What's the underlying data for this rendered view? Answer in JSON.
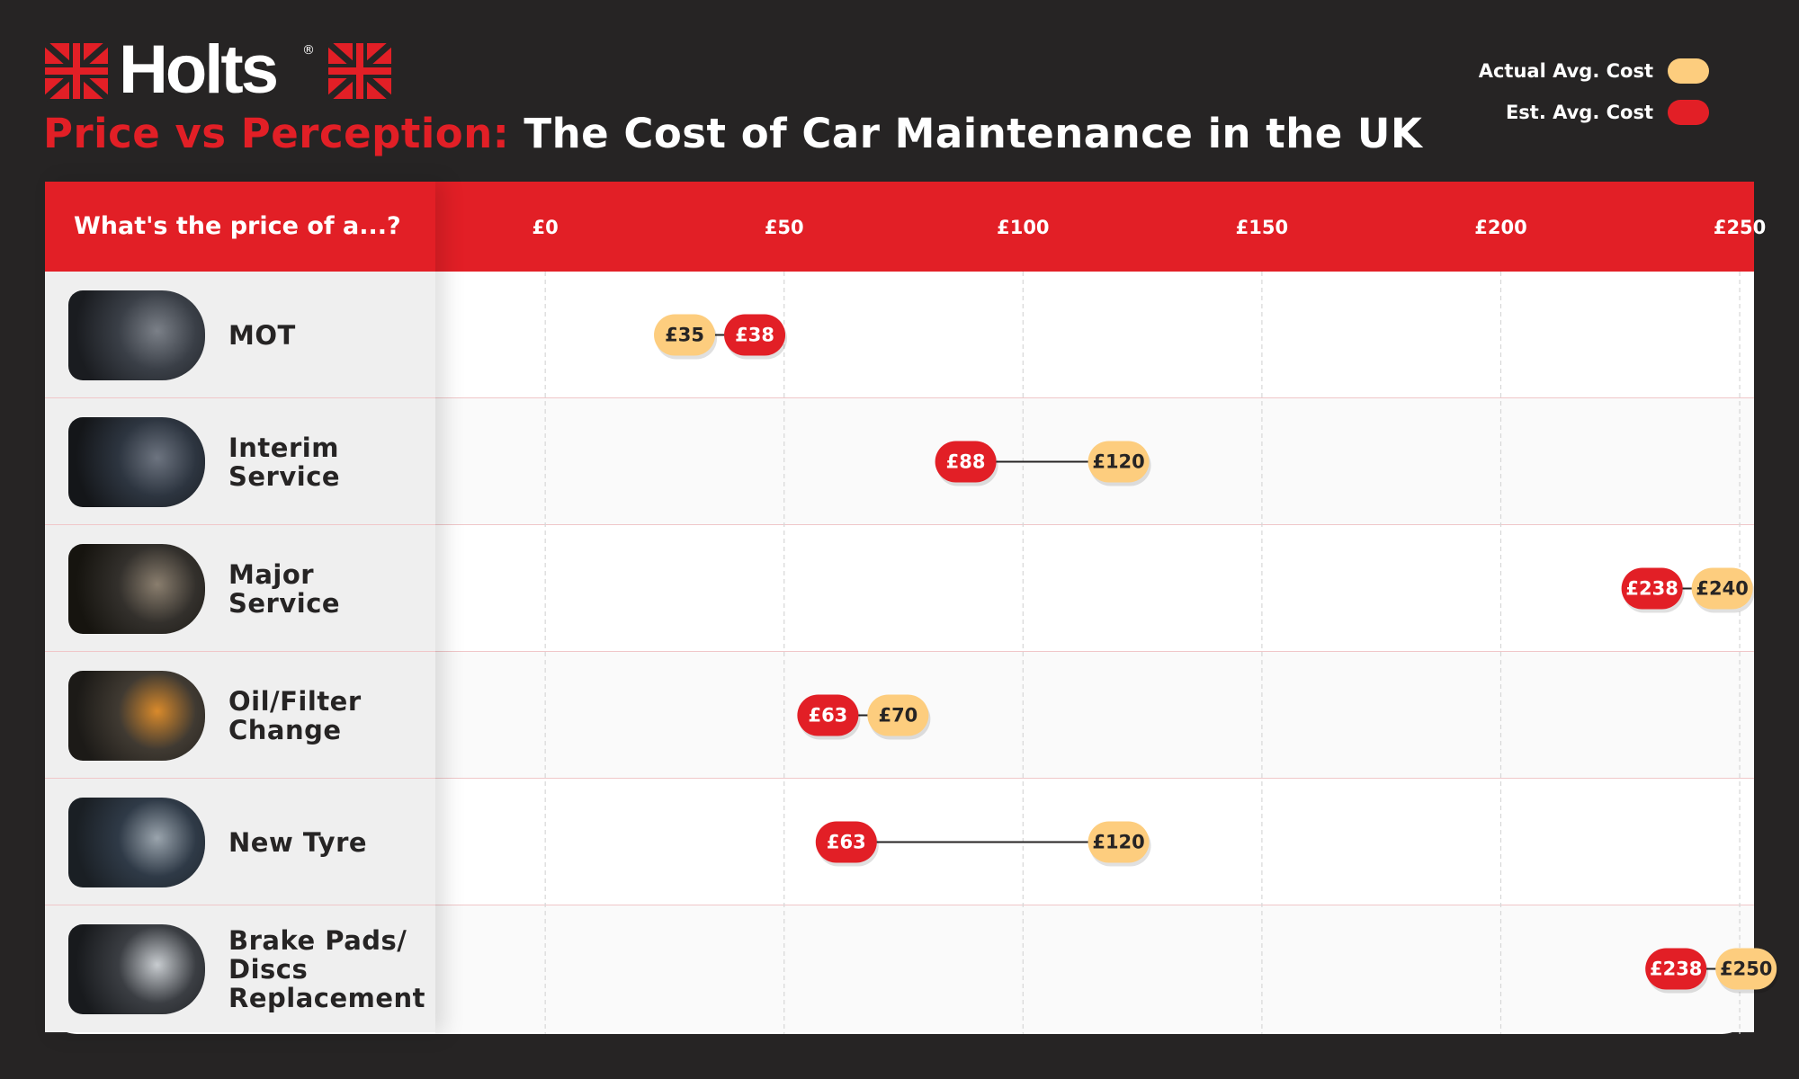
{
  "brand": {
    "name": "Holts",
    "registered": "®"
  },
  "title": {
    "accent": "Price vs Perception:",
    "main": "The Cost of Car Maintenance in the UK"
  },
  "colors": {
    "accent": "#e21f26",
    "actual": "#fdcd7e",
    "estimate": "#e21f26",
    "background": "#262424"
  },
  "legend": [
    {
      "label": "Actual Avg. Cost",
      "color": "#fdcd7e"
    },
    {
      "label": "Est. Avg. Cost",
      "color": "#e21f26"
    }
  ],
  "chart_data": {
    "type": "dumbbell",
    "category_header": "What's the price of a...?",
    "x_ticks": [
      "£0",
      "£50",
      "£100",
      "£150",
      "£200",
      "£250"
    ],
    "x_tick_values": [
      0,
      50,
      100,
      150,
      200,
      250
    ],
    "xlim": [
      -23,
      253
    ],
    "series": [
      {
        "name": "Actual Avg. Cost",
        "color": "#fdcd7e"
      },
      {
        "name": "Est. Avg. Cost",
        "color": "#e21f26"
      }
    ],
    "rows": [
      {
        "category": "MOT",
        "actual": 35,
        "actual_label": "£35",
        "estimate": 38,
        "estimate_label": "£38",
        "image": "mechanic-engine-photo"
      },
      {
        "category": "Interim\nService",
        "actual": 120,
        "actual_label": "£120",
        "estimate": 88,
        "estimate_label": "£88",
        "image": "engine-work-photo"
      },
      {
        "category": "Major\nService",
        "actual": 240,
        "actual_label": "£240",
        "estimate": 238,
        "estimate_label": "£238",
        "image": "engine-repair-photo"
      },
      {
        "category": "Oil/Filter\nChange",
        "actual": 70,
        "actual_label": "£70",
        "estimate": 63,
        "estimate_label": "£63",
        "image": "oil-pour-photo"
      },
      {
        "category": "New Tyre",
        "actual": 120,
        "actual_label": "£120",
        "estimate": 63,
        "estimate_label": "£63",
        "image": "tyre-mechanic-photo"
      },
      {
        "category": "Brake Pads/\nDiscs\nReplacement",
        "actual": 250,
        "actual_label": "£250",
        "estimate": 238,
        "estimate_label": "£238",
        "image": "brake-disc-photo"
      }
    ]
  }
}
